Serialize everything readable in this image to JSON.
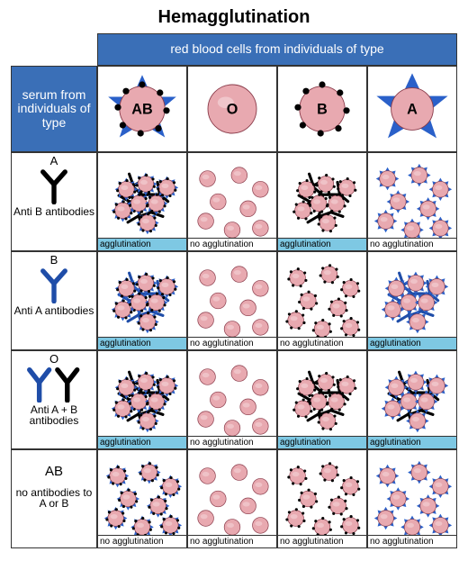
{
  "title": "Hemagglutination",
  "header_columns_label": "red blood cells from individuals of type",
  "header_rows_label": "serum from individuals of type",
  "colors": {
    "header_blue": "#3a6fb7",
    "agg_label_bg": "#7ec8e3",
    "cell_fill": "#e8a9b0",
    "cell_stroke": "#8a3b4a",
    "anti_a_color": "#1f4da8",
    "anti_b_color": "#000000",
    "star_a_color": "#2a60c9",
    "dot_b_color": "#000000"
  },
  "blood_types": [
    {
      "label": "AB",
      "has_a_antigen": true,
      "has_b_antigen": true
    },
    {
      "label": "O",
      "has_a_antigen": false,
      "has_b_antigen": false
    },
    {
      "label": "B",
      "has_a_antigen": false,
      "has_b_antigen": true
    },
    {
      "label": "A",
      "has_a_antigen": true,
      "has_b_antigen": false
    }
  ],
  "sera": [
    {
      "label": "A",
      "desc": "Anti B antibodies",
      "anti_a": false,
      "anti_b": true
    },
    {
      "label": "B",
      "desc": "Anti A antibodies",
      "anti_a": true,
      "anti_b": false
    },
    {
      "label": "O",
      "desc": "Anti A + B antibodies",
      "anti_a": true,
      "anti_b": true
    },
    {
      "label": "AB",
      "desc": "no antibodies to A or B",
      "anti_a": false,
      "anti_b": false
    }
  ],
  "results": [
    [
      {
        "agg": true,
        "label": "agglutination"
      },
      {
        "agg": false,
        "label": "no agglutination"
      },
      {
        "agg": true,
        "label": "agglutination"
      },
      {
        "agg": false,
        "label": "no agglutination"
      }
    ],
    [
      {
        "agg": true,
        "label": "agglutination"
      },
      {
        "agg": false,
        "label": "no agglutination"
      },
      {
        "agg": false,
        "label": "no agglutination"
      },
      {
        "agg": true,
        "label": "agglutination"
      }
    ],
    [
      {
        "agg": true,
        "label": "agglutination"
      },
      {
        "agg": false,
        "label": "no agglutination"
      },
      {
        "agg": true,
        "label": "agglutination"
      },
      {
        "agg": true,
        "label": "agglutination"
      }
    ],
    [
      {
        "agg": false,
        "label": "no agglutination"
      },
      {
        "agg": false,
        "label": "no agglutination"
      },
      {
        "agg": false,
        "label": "no agglutination"
      },
      {
        "agg": false,
        "label": "no agglutination"
      }
    ]
  ],
  "typography": {
    "title_fontsize": 20,
    "header_fontsize": 14,
    "label_fontsize": 12,
    "result_fontsize": 10
  }
}
